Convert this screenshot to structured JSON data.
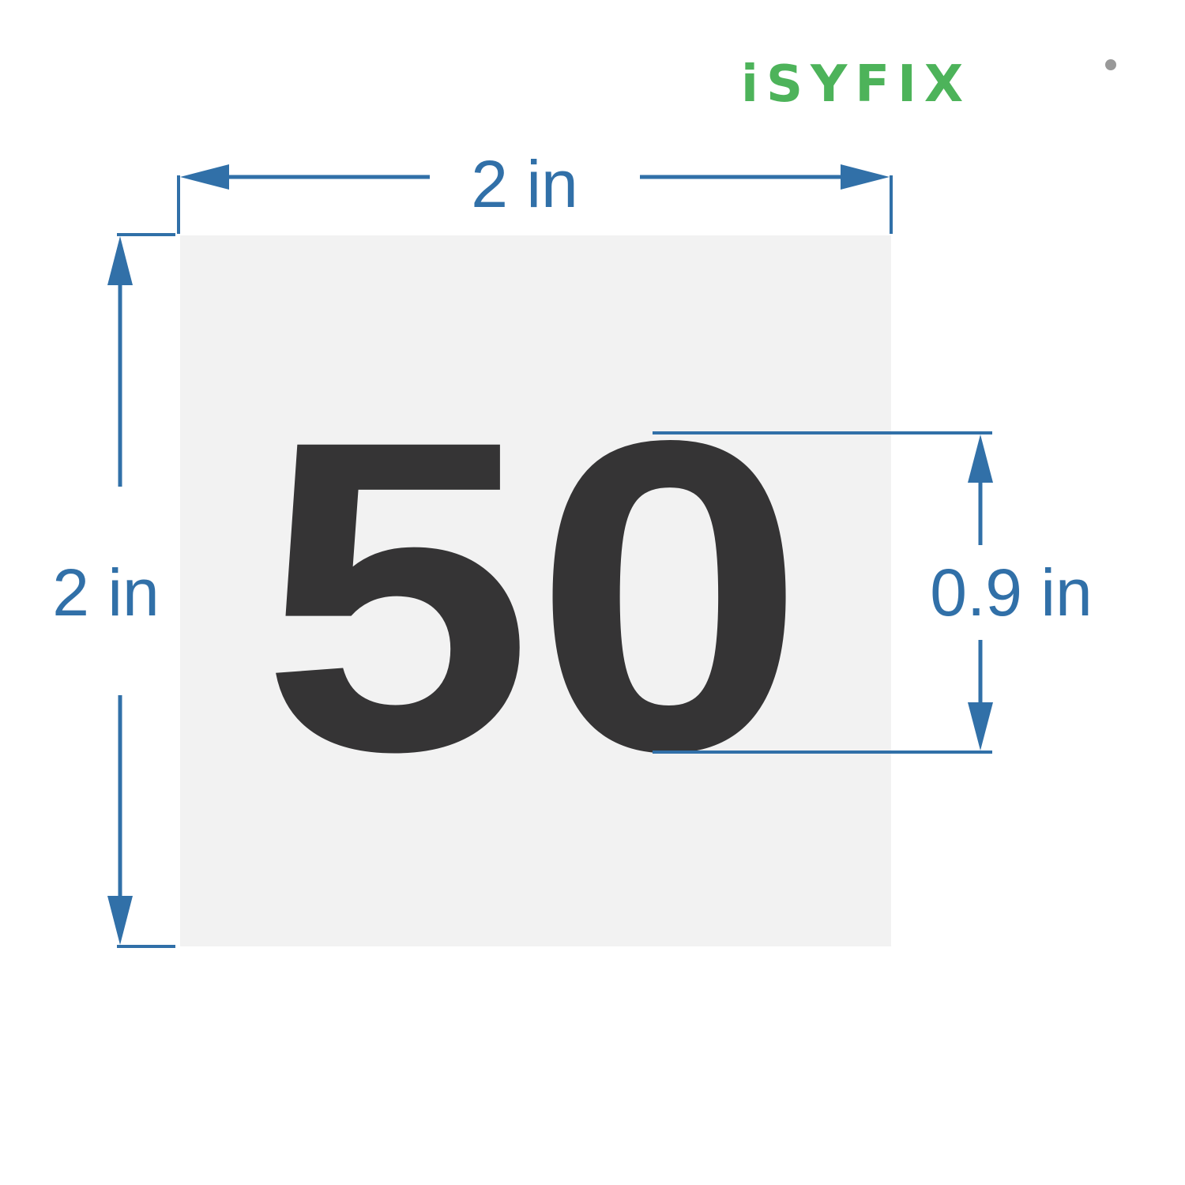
{
  "brand": {
    "name": "iSYFIX",
    "color": "#4db35a",
    "registered_mark_color": "#999999"
  },
  "sticker": {
    "number": "50",
    "background_color": "#f2f2f2",
    "text_color": "#353435"
  },
  "dimensions": {
    "color": "#3170a8",
    "width_label": "2 in",
    "height_label": "2 in",
    "digit_height_label": "0.9 in"
  }
}
